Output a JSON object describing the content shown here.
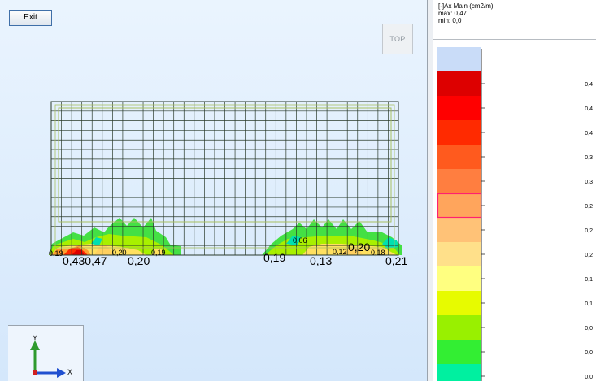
{
  "toolbar": {
    "exit_label": "Exit",
    "top_view_label": "TOP"
  },
  "legend": {
    "title": "[-]Ax Main (cm2/m)",
    "max_label": "max: 0,47",
    "min_label": "min:   0,0",
    "bands": [
      {
        "color": "#c9dcf8",
        "label": ""
      },
      {
        "color": "#dd0000",
        "label": "0,4"
      },
      {
        "color": "#ff0000",
        "label": "0,4"
      },
      {
        "color": "#ff2a00",
        "label": "0,4"
      },
      {
        "color": "#ff5a1e",
        "label": "0,3"
      },
      {
        "color": "#ff7e40",
        "label": "0,3"
      },
      {
        "color": "#ffa55c",
        "label": "0,2"
      },
      {
        "color": "#ffc277",
        "label": "0,2"
      },
      {
        "color": "#ffe08a",
        "label": "0,2"
      },
      {
        "color": "#ffff80",
        "label": "0,1"
      },
      {
        "color": "#e7fb00",
        "label": "0,1"
      },
      {
        "color": "#99f000",
        "label": "0,0"
      },
      {
        "color": "#33ee33",
        "label": "0,0"
      },
      {
        "color": "#00f0a0",
        "label": "0,0"
      },
      {
        "color": "#c9dcf8",
        "label": ""
      }
    ],
    "highlighted_band": 6
  },
  "results": {
    "small_labels": [
      "0,19",
      "0,20",
      "0,19",
      "0,06",
      "0,12",
      "0,18"
    ],
    "large_labels": [
      "0,430,47",
      "0,20",
      "0,19",
      "0,13",
      "0,20",
      "0,21"
    ]
  },
  "axes": {
    "x_label": "X",
    "y_label": "Y"
  },
  "colors": {
    "mesh": "#2a3a2a",
    "inner_outline": "#a8c060",
    "axis_y": "#2e9a2e",
    "axis_x": "#2050d0"
  }
}
